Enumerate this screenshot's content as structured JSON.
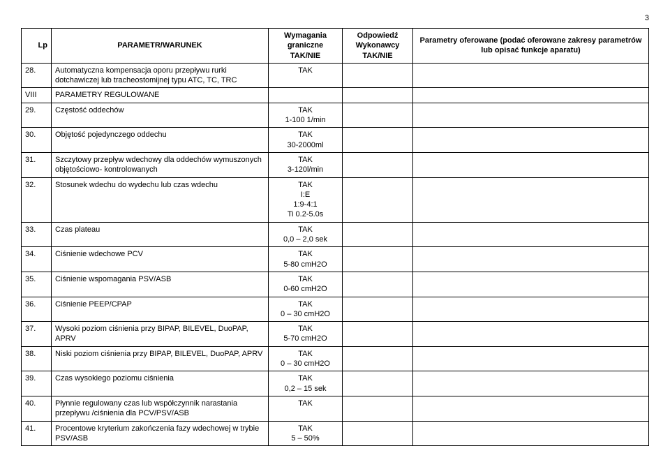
{
  "page_number": "3",
  "headers": {
    "lp": "Lp",
    "param": "PARAMETR/WARUNEK",
    "req": "Wymagania graniczne TAK/NIE",
    "resp": "Odpowiedź Wykonawcy TAK/NIE",
    "offer": "Parametry oferowane\n(podać oferowane zakresy parametrów lub opisać funkcje aparatu)"
  },
  "rows": [
    {
      "lp": "28.",
      "param": "Automatyczna kompensacja oporu przepływu rurki dotchawiczej lub tracheostomijnej typu ATC, TC, TRC",
      "req": "TAK"
    },
    {
      "lp": "VIII",
      "param": "PARAMETRY REGULOWANE",
      "req": "",
      "section": true
    },
    {
      "lp": "29.",
      "param": "Częstość oddechów",
      "req": "TAK\n1-100 1/min"
    },
    {
      "lp": "30.",
      "param": "Objętość pojedynczego oddechu",
      "req": "TAK\n30-2000ml"
    },
    {
      "lp": "31.",
      "param": "Szczytowy przepływ wdechowy dla oddechów wymuszonych objętościowo- kontrolowanych",
      "req": "TAK\n3-120l/min"
    },
    {
      "lp": "32.",
      "param": "Stosunek wdechu do wydechu lub czas wdechu",
      "req": "TAK\nI:E\n1:9-4:1\nTi 0.2-5.0s"
    },
    {
      "lp": "33.",
      "param": "Czas plateau",
      "req": "TAK\n0,0 – 2,0 sek"
    },
    {
      "lp": "34.",
      "param": "Ciśnienie wdechowe PCV",
      "req": "TAK\n5-80 cmH2O"
    },
    {
      "lp": "35.",
      "param": "Ciśnienie wspomagania PSV/ASB",
      "req": "TAK\n0-60 cmH2O"
    },
    {
      "lp": "36.",
      "param": "Ciśnienie PEEP/CPAP",
      "req": "TAK\n0 – 30 cmH2O"
    },
    {
      "lp": "37.",
      "param": "Wysoki poziom ciśnienia przy BIPAP, BILEVEL, DuoPAP, APRV",
      "req": "TAK\n5-70 cmH2O"
    },
    {
      "lp": "38.",
      "param": "Niski poziom ciśnienia przy BIPAP, BILEVEL, DuoPAP, APRV",
      "req": "TAK\n0 – 30 cmH2O"
    },
    {
      "lp": "39.",
      "param": "Czas wysokiego poziomu ciśnienia",
      "req": "TAK\n0,2 – 15 sek"
    },
    {
      "lp": "40.",
      "param": "Płynnie regulowany czas lub współczynnik narastania przepływu /ciśnienia dla PCV/PSV/ASB",
      "req": "TAK"
    },
    {
      "lp": "41.",
      "param": "Procentowe kryterium zakończenia fazy wdechowej w trybie PSV/ASB",
      "req": "TAK\n5 – 50%"
    }
  ]
}
